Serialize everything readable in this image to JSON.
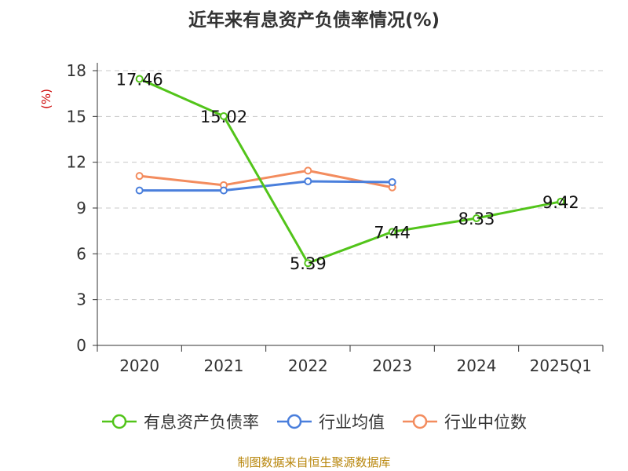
{
  "title": "近年来有息资产负债率情况(%)",
  "source": "制图数据来自恒生聚源数据库",
  "colors": {
    "series_debt": "#52c41a",
    "series_avg": "#4a7fdc",
    "series_median": "#f38c5e",
    "y_unit": "#cc0000"
  },
  "chart_data": {
    "type": "line",
    "title": "近年来有息资产负债率情况(%)",
    "xlabel": "",
    "ylabel": "(%)",
    "categories": [
      "2020",
      "2021",
      "2022",
      "2023",
      "2024",
      "2025Q1"
    ],
    "ylim": [
      0,
      18
    ],
    "yticks": [
      0,
      3,
      6,
      9,
      12,
      15,
      18
    ],
    "grid": true,
    "legend_position": "bottom",
    "series": [
      {
        "name": "有息资产负债率",
        "color": "#52c41a",
        "values": [
          17.46,
          15.02,
          5.39,
          7.44,
          8.33,
          9.42
        ],
        "labels": [
          "17.46",
          "15.02",
          "5.39",
          "7.44",
          "8.33",
          "9.42"
        ],
        "show_labels": true
      },
      {
        "name": "行业均值",
        "color": "#4a7fdc",
        "values": [
          10.15,
          10.15,
          10.75,
          10.7,
          null,
          null
        ],
        "show_labels": false
      },
      {
        "name": "行业中位数",
        "color": "#f38c5e",
        "values": [
          11.1,
          10.5,
          11.45,
          10.35,
          null,
          null
        ],
        "show_labels": false
      }
    ]
  }
}
